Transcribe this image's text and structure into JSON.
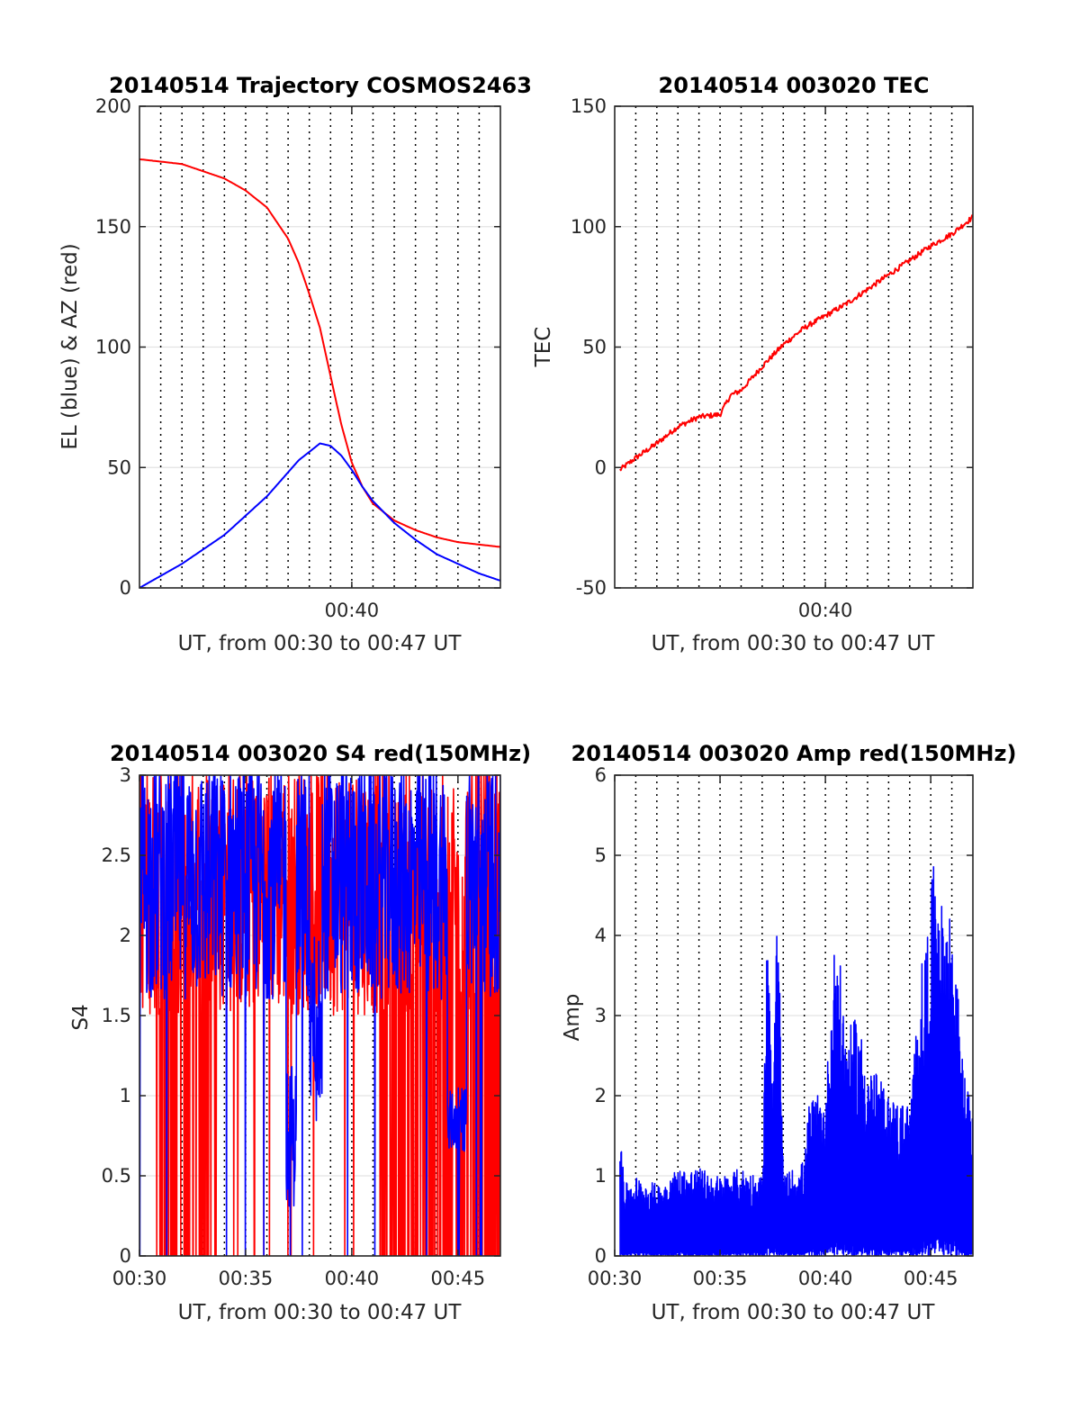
{
  "chart_data": [
    {
      "type": "line",
      "title": "20140514 Trajectory COSMOS2463",
      "xlabel": "UT, from 00:30 to 00:47 UT",
      "ylabel": "EL (blue) & AZ (red)",
      "xlim": [
        0.5,
        0.783333
      ],
      "ylim": [
        0,
        200
      ],
      "x_ticks": [
        {
          "value": 0.666667,
          "label": "00:40"
        }
      ],
      "y_ticks": [
        0,
        50,
        100,
        150,
        200
      ],
      "vgrid_dotted_minutes": [
        31,
        32,
        33,
        34,
        35,
        36,
        37,
        38,
        39,
        40,
        41,
        42,
        43,
        44,
        45,
        46
      ],
      "hgrid": true,
      "series": [
        {
          "color": "#ff0000",
          "x": [
            0.5,
            0.533333,
            0.566667,
            0.583333,
            0.6,
            0.616667,
            0.625,
            0.633333,
            0.641667,
            0.65,
            0.658333,
            0.666667,
            0.675,
            0.683333,
            0.7,
            0.716667,
            0.733333,
            0.75,
            0.766667,
            0.783333
          ],
          "y": [
            178,
            176,
            170,
            165,
            158,
            145,
            135,
            122,
            108,
            88,
            68,
            52,
            42,
            35,
            28,
            24,
            21,
            19,
            18,
            17
          ]
        },
        {
          "color": "#0000ff",
          "x": [
            0.5,
            0.533333,
            0.566667,
            0.6,
            0.625,
            0.641667,
            0.65,
            0.658333,
            0.666667,
            0.675,
            0.683333,
            0.7,
            0.716667,
            0.733333,
            0.75,
            0.766667,
            0.783333
          ],
          "y": [
            0,
            10,
            22,
            38,
            53,
            60,
            59,
            55,
            49,
            42,
            36,
            27,
            20,
            14,
            10,
            6,
            3
          ]
        }
      ]
    },
    {
      "type": "line",
      "title": "20140514 003020 TEC",
      "xlabel": "UT, from 00:30 to 00:47 UT",
      "ylabel": "TEC",
      "xlim": [
        0.5,
        0.783333
      ],
      "ylim": [
        -50,
        150
      ],
      "x_ticks": [
        {
          "value": 0.666667,
          "label": "00:40"
        }
      ],
      "y_ticks": [
        -50,
        0,
        50,
        100,
        150
      ],
      "vgrid_dotted_minutes": [
        31,
        32,
        33,
        34,
        35,
        36,
        37,
        38,
        39,
        40,
        41,
        42,
        43,
        44,
        45,
        46
      ],
      "hgrid": true,
      "series": [
        {
          "color": "#ff0000",
          "x": [
            0.504167,
            0.516667,
            0.533333,
            0.55,
            0.566667,
            0.583333,
            0.591667,
            0.6,
            0.616667,
            0.633333,
            0.65,
            0.666667,
            0.683333,
            0.7,
            0.716667,
            0.733333,
            0.75,
            0.766667,
            0.783333
          ],
          "y": [
            -1,
            4,
            10,
            17,
            21,
            22,
            30,
            32,
            42,
            51,
            58,
            63,
            68,
            74,
            80,
            86,
            92,
            97,
            104
          ]
        }
      ]
    },
    {
      "type": "line",
      "title": "20140514 003020 S4 red(150MHz)",
      "xlabel": "UT, from 00:30 to 00:47 UT",
      "ylabel": "S4",
      "xlim": [
        0.5,
        0.783333
      ],
      "ylim": [
        0,
        3
      ],
      "x_ticks": [
        {
          "value": 0.5,
          "label": "00:30"
        },
        {
          "value": 0.583333,
          "label": "00:35"
        },
        {
          "value": 0.666667,
          "label": "00:40"
        },
        {
          "value": 0.75,
          "label": "00:45"
        }
      ],
      "y_ticks": [
        0,
        0.5,
        1,
        1.5,
        2,
        2.5,
        3
      ],
      "y_tick_labels": [
        "0",
        "0.5",
        "1",
        "1.5",
        "2",
        "2.5",
        "3"
      ],
      "vgrid_dotted_minutes": [
        31,
        32,
        33,
        34,
        35,
        36,
        37,
        38,
        39,
        40,
        41,
        42,
        43,
        44,
        45,
        46
      ],
      "hgrid": true,
      "series": [
        {
          "color": "#ff0000",
          "note_values": "dense noisy data, mostly between 1.4 and 3, with frequent drops to 0 near 00:31-00:33 and 00:41-00:47"
        },
        {
          "color": "#0000ff",
          "note_values": "dense noisy data, mostly between 1.5 and 3; dips to ~0.4 near 00:37, ~1 near 00:38; cluster ~0.7-1.0 near 00:45"
        }
      ]
    },
    {
      "type": "line",
      "title": "20140514 003020 Amp red(150MHz)",
      "xlabel": "UT, from 00:30 to 00:47 UT",
      "ylabel": "Amp",
      "xlim": [
        0.5,
        0.783333
      ],
      "ylim": [
        0,
        6
      ],
      "x_ticks": [
        {
          "value": 0.5,
          "label": "00:30"
        },
        {
          "value": 0.583333,
          "label": "00:35"
        },
        {
          "value": 0.666667,
          "label": "00:40"
        },
        {
          "value": 0.75,
          "label": "00:45"
        }
      ],
      "y_ticks": [
        0,
        1,
        2,
        3,
        4,
        5,
        6
      ],
      "vgrid_dotted_minutes": [
        31,
        32,
        33,
        34,
        35,
        36,
        37,
        38,
        39,
        40,
        41,
        42,
        43,
        44,
        45,
        46
      ],
      "hgrid": true,
      "series": [
        {
          "color": "#0000ff",
          "x": [
            0.504167,
            0.508333,
            0.516667,
            0.533333,
            0.55,
            0.566667,
            0.583333,
            0.6,
            0.616667,
            0.620833,
            0.625,
            0.629167,
            0.633333,
            0.65,
            0.654167,
            0.666667,
            0.675,
            0.683333,
            0.691667,
            0.7,
            0.716667,
            0.733333,
            0.741667,
            0.75,
            0.754167,
            0.758333,
            0.766667,
            0.775,
            0.783333
          ],
          "y": [
            1.8,
            0.9,
            1.0,
            0.9,
            1.1,
            1.1,
            1.0,
            1.1,
            1.0,
            4.3,
            2.0,
            4.6,
            1.0,
            1.2,
            2.0,
            2.0,
            4.2,
            2.8,
            3.0,
            2.5,
            2.0,
            1.9,
            3.5,
            4.5,
            5.3,
            4.4,
            4.4,
            2.5,
            1.7
          ]
        }
      ]
    }
  ]
}
